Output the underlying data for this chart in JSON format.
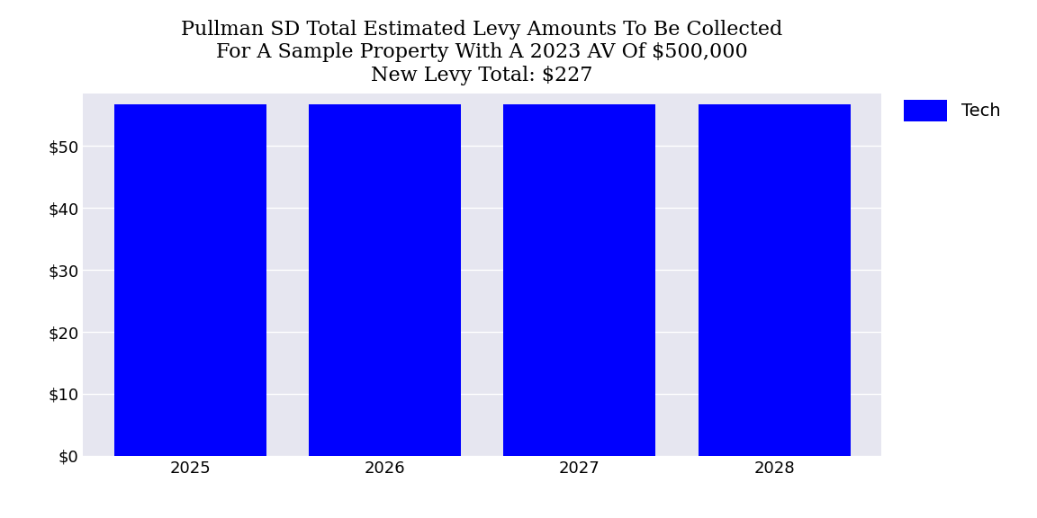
{
  "title": "Pullman SD Total Estimated Levy Amounts To Be Collected\nFor A Sample Property With A 2023 AV Of $500,000\nNew Levy Total: $227",
  "categories": [
    2025,
    2026,
    2027,
    2028
  ],
  "tech_values": [
    56.75,
    56.75,
    56.75,
    56.75
  ],
  "bar_color": "#0000FF",
  "legend_label": "Tech",
  "ylim": [
    0,
    58.5
  ],
  "yticks": [
    0,
    10,
    20,
    30,
    40,
    50
  ],
  "ytick_labels": [
    "$0",
    "$10",
    "$20",
    "$30",
    "$40",
    "$50"
  ],
  "background_color": "#E6E6F0",
  "figure_background": "#FFFFFF",
  "title_fontsize": 16,
  "bar_width": 0.78,
  "grid_color": "#FFFFFF",
  "tick_fontsize": 13
}
